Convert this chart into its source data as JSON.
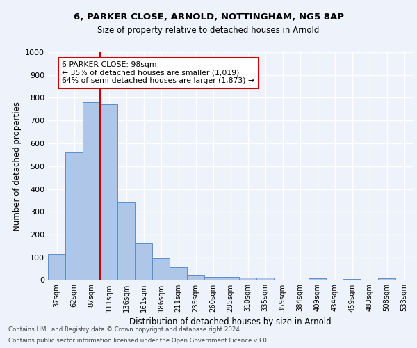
{
  "title1": "6, PARKER CLOSE, ARNOLD, NOTTINGHAM, NG5 8AP",
  "title2": "Size of property relative to detached houses in Arnold",
  "xlabel": "Distribution of detached houses by size in Arnold",
  "ylabel": "Number of detached properties",
  "categories": [
    "37sqm",
    "62sqm",
    "87sqm",
    "111sqm",
    "136sqm",
    "161sqm",
    "186sqm",
    "211sqm",
    "235sqm",
    "260sqm",
    "285sqm",
    "310sqm",
    "335sqm",
    "359sqm",
    "384sqm",
    "409sqm",
    "434sqm",
    "459sqm",
    "483sqm",
    "508sqm",
    "533sqm"
  ],
  "values": [
    115,
    560,
    780,
    770,
    345,
    162,
    97,
    57,
    22,
    14,
    13,
    12,
    10,
    0,
    0,
    8,
    0,
    5,
    0,
    7,
    0
  ],
  "bar_color": "#aec6e8",
  "bar_edge_color": "#5b8fc9",
  "ylim": [
    0,
    1000
  ],
  "yticks": [
    0,
    100,
    200,
    300,
    400,
    500,
    600,
    700,
    800,
    900,
    1000
  ],
  "vline_x": 2.5,
  "vline_color": "#cc0000",
  "annotation_text": "6 PARKER CLOSE: 98sqm\n← 35% of detached houses are smaller (1,019)\n64% of semi-detached houses are larger (1,873) →",
  "annotation_box_color": "#cc0000",
  "footer1": "Contains HM Land Registry data © Crown copyright and database right 2024.",
  "footer2": "Contains public sector information licensed under the Open Government Licence v3.0.",
  "background_color": "#eef2fa",
  "grid_color": "#ffffff"
}
